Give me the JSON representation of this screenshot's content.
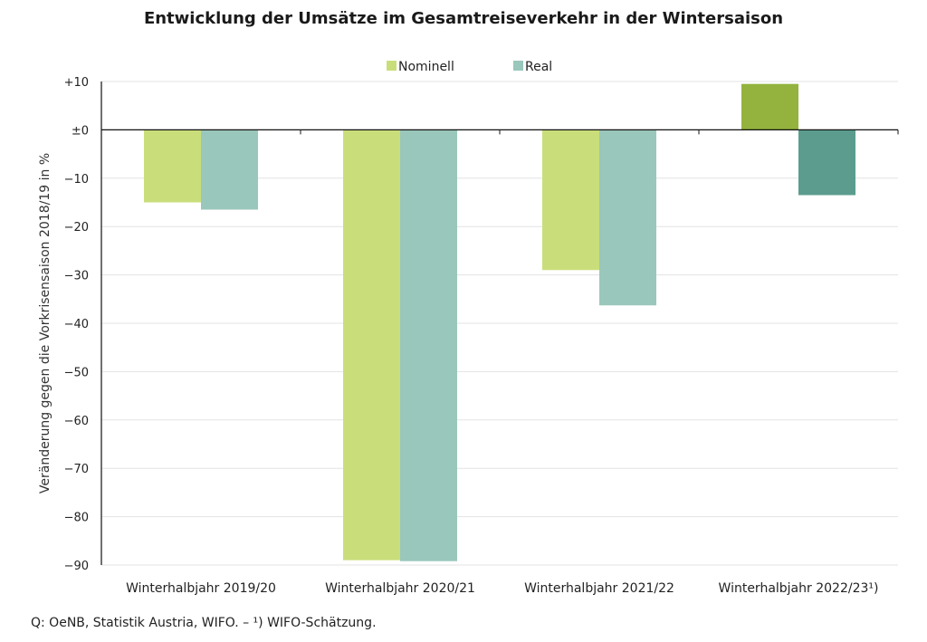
{
  "chart_data": {
    "type": "bar",
    "title": "Entwicklung der Umsätze im Gesamtreiseverkehr in der Wintersaison",
    "ylabel": "Veränderung gegen die Vorkrisensaison 2018/19 in %",
    "xlabel": "",
    "categories": [
      "Winterhalbjahr 2019/20",
      "Winterhalbjahr 2020/21",
      "Winterhalbjahr 2021/22",
      "Winterhalbjahr 2022/23¹)"
    ],
    "series": [
      {
        "name": "Nominell",
        "values": [
          -15,
          -89,
          -29,
          9.5
        ],
        "color": "#c9de7a",
        "highlight_color": "#93b33e"
      },
      {
        "name": "Real",
        "values": [
          -16.5,
          -89.2,
          -36.3,
          -13.5
        ],
        "color": "#9ac7bb",
        "highlight_color": "#5b9c8e"
      }
    ],
    "highlight_category_index": 3,
    "ylim": [
      -90,
      10
    ],
    "yticks": [
      10,
      0,
      -10,
      -20,
      -30,
      -40,
      -50,
      -60,
      -70,
      -80,
      -90
    ],
    "ytick_labels": [
      "+10",
      "±0",
      "−10",
      "−20",
      "−30",
      "−40",
      "−50",
      "−60",
      "−70",
      "−80",
      "−90"
    ],
    "grid": true,
    "legend_position": "top"
  },
  "source": "Q: OeNB, Statistik Austria, WIFO. – ¹) WIFO-Schätzung."
}
